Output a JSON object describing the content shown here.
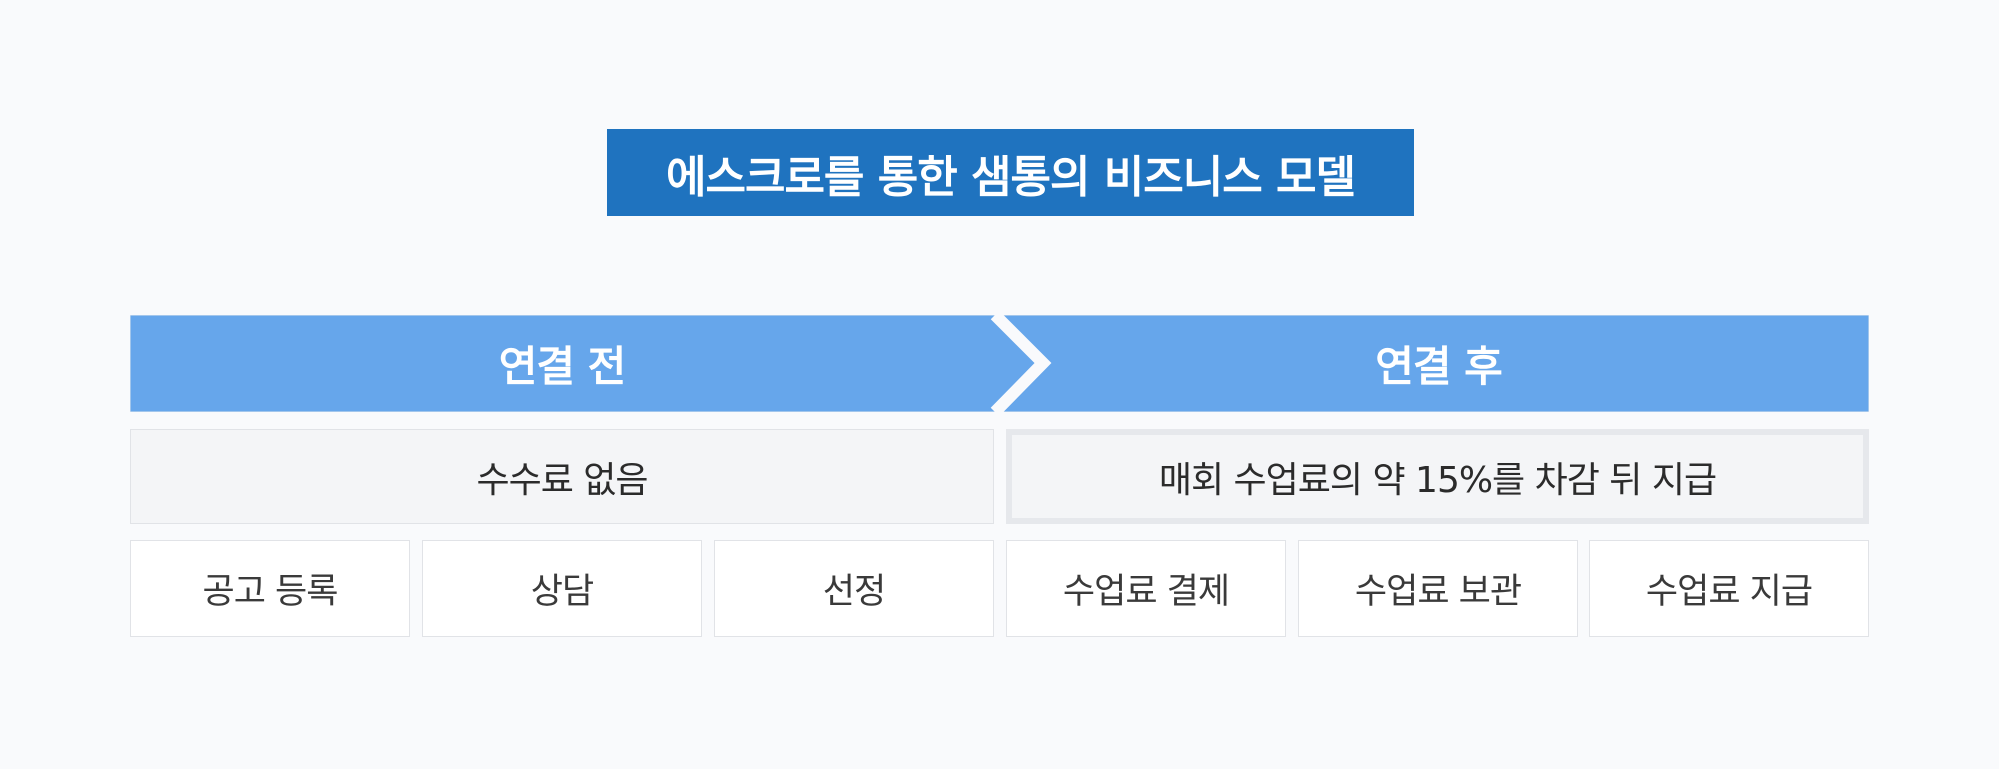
{
  "title": "에스크로를 통한 샘통의 비즈니스 모델",
  "colors": {
    "title_bg": "#1f73bf",
    "banner_bg": "#66a6eb",
    "fee_bg": "#f4f5f7",
    "step_bg": "#ffffff",
    "page_bg": "#f9fafc"
  },
  "phases": {
    "before": {
      "label": "연결 전",
      "fee": "수수료 없음",
      "steps": [
        "공고 등록",
        "상담",
        "선정"
      ]
    },
    "after": {
      "label": "연결 후",
      "fee": "매회 수업료의 약 15%를 차감 뒤 지급",
      "steps": [
        "수업료 결제",
        "수업료 보관",
        "수업료 지급"
      ]
    }
  },
  "icons": {
    "banner_separator": "chevron-right-icon"
  }
}
